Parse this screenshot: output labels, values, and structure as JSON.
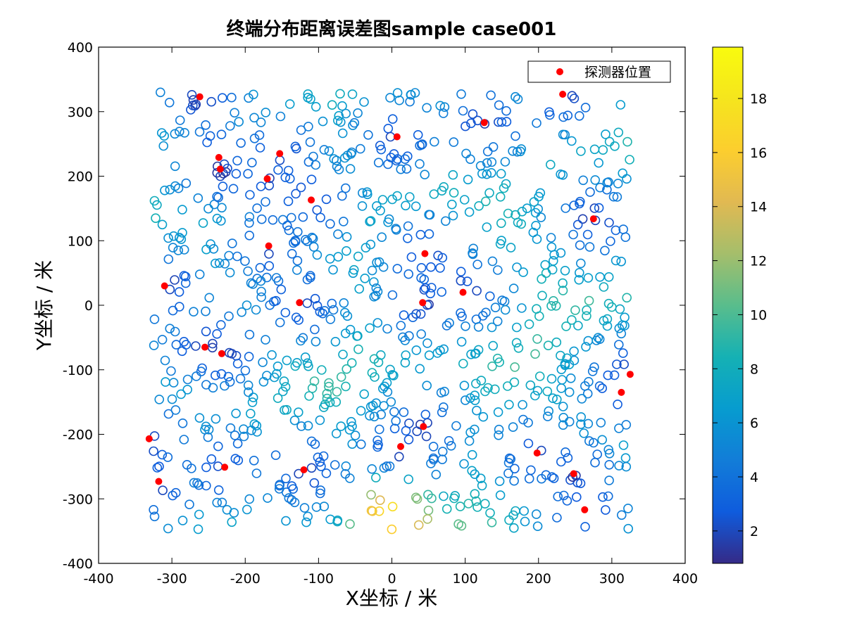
{
  "chart_data": {
    "type": "scatter",
    "title": "终端分布距离误差图sample case001",
    "xlabel": "X坐标 / 米",
    "ylabel": "Y坐标 / 米",
    "xlim": [
      -400,
      400
    ],
    "ylim": [
      -400,
      400
    ],
    "xticks": [
      -400,
      -300,
      -200,
      -100,
      0,
      100,
      200,
      300,
      400
    ],
    "yticks": [
      -400,
      -300,
      -200,
      -100,
      0,
      100,
      200,
      300,
      400
    ],
    "grid": false,
    "legend": {
      "placement": "top-right",
      "entries": [
        "探测器位置"
      ]
    },
    "colorbar": {
      "min": 0.8,
      "max": 19.9,
      "ticks": [
        2,
        4,
        6,
        8,
        10,
        12,
        14,
        16,
        18
      ],
      "colormap": "parula"
    },
    "colors": {
      "detector": "#ff0000"
    },
    "detectors": {
      "name": "探测器位置",
      "x": [
        -262,
        233,
        7,
        126,
        -236,
        -153,
        -234,
        -170,
        -110,
        275,
        -168,
        45,
        -310,
        97,
        -126,
        42,
        -255,
        -232,
        325,
        313,
        43,
        -331,
        12,
        198,
        -228,
        -120,
        248,
        -318,
        263
      ],
      "y": [
        323,
        327,
        261,
        283,
        229,
        235,
        211,
        196,
        163,
        134,
        92,
        80,
        30,
        20,
        4,
        4,
        -65,
        -75,
        -107,
        -135,
        -188,
        -207,
        -219,
        -229,
        -251,
        -255,
        -261,
        -273,
        -317
      ]
    },
    "terminal_seed": 20240101,
    "terminal_count": 1000
  }
}
